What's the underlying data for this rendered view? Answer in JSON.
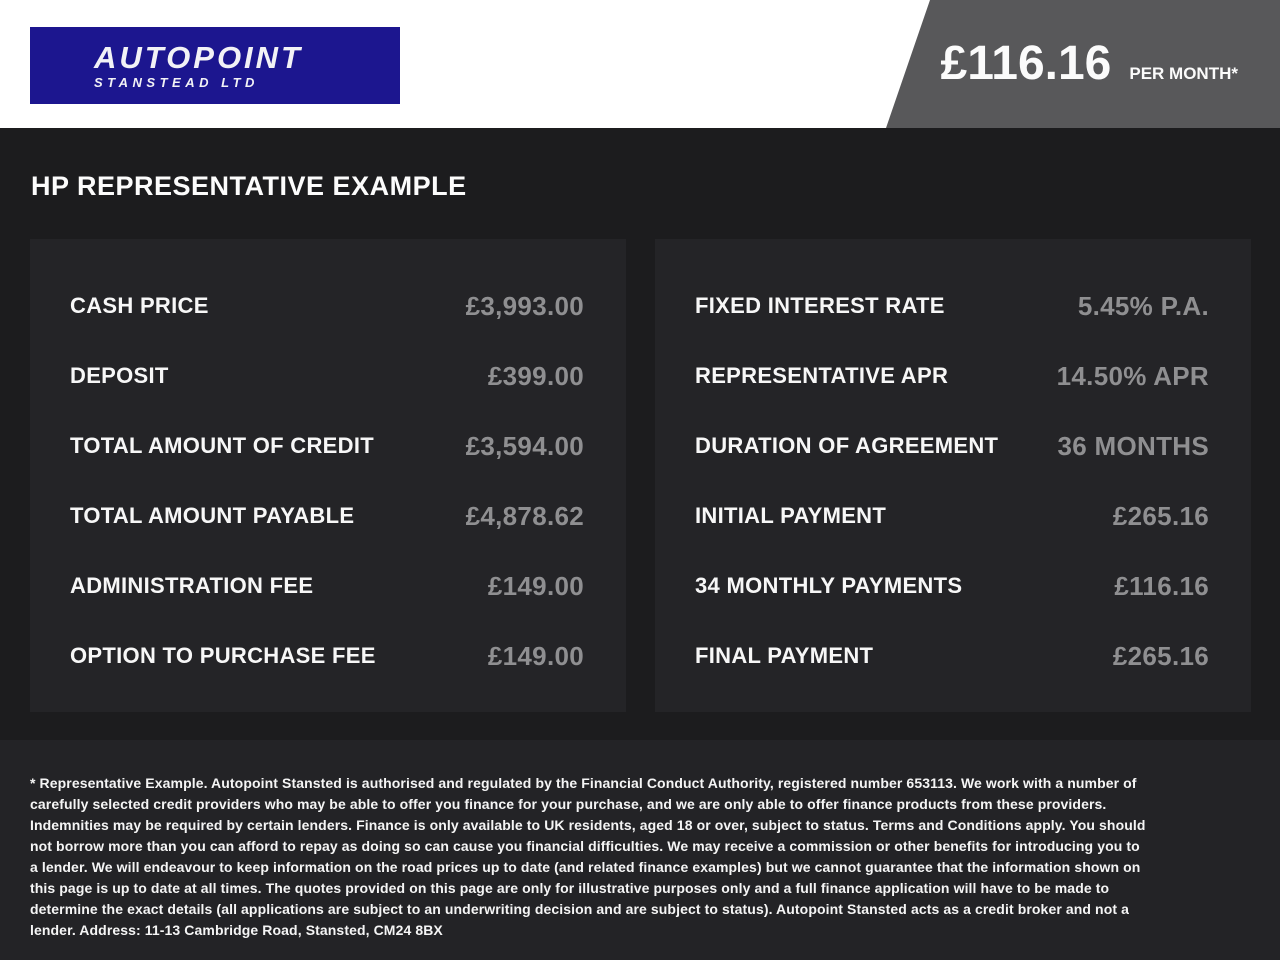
{
  "header": {
    "logo": {
      "brand": "AUTOPOINT",
      "subtitle": "STANSTEAD LTD",
      "background_color": "#1c168f"
    },
    "price_banner": {
      "amount": "£116.16",
      "period": "PER MONTH*",
      "background_color": "#58585a"
    }
  },
  "section_title": "HP REPRESENTATIVE EXAMPLE",
  "finance_table": {
    "left_rows": [
      {
        "label": "CASH PRICE",
        "value": "£3,993.00"
      },
      {
        "label": "DEPOSIT",
        "value": "£399.00"
      },
      {
        "label": "TOTAL AMOUNT OF CREDIT",
        "value": "£3,594.00"
      },
      {
        "label": "TOTAL AMOUNT PAYABLE",
        "value": "£4,878.62"
      },
      {
        "label": "ADMINISTRATION FEE",
        "value": "£149.00"
      },
      {
        "label": "OPTION TO PURCHASE FEE",
        "value": "£149.00"
      }
    ],
    "right_rows": [
      {
        "label": "FIXED INTEREST RATE",
        "value": "5.45% P.A."
      },
      {
        "label": "REPRESENTATIVE APR",
        "value": "14.50% APR"
      },
      {
        "label": "DURATION OF AGREEMENT",
        "value": "36 MONTHS"
      },
      {
        "label": "INITIAL PAYMENT",
        "value": "£265.16"
      },
      {
        "label": "34 MONTHLY PAYMENTS",
        "value": "£116.16"
      },
      {
        "label": "FINAL PAYMENT",
        "value": "£265.16"
      }
    ]
  },
  "footer": {
    "disclaimer": "* Representative Example. Autopoint Stansted is authorised and regulated by the Financial Conduct Authority, registered number 653113. We work with a number of carefully selected credit providers who may be able to offer you finance for your purchase, and we are only able to offer finance products from these providers. Indemnities may be required by certain lenders. Finance is only available to UK residents, aged 18 or over, subject to status. Terms and Conditions apply. You should not borrow more than you can afford to repay as doing so can cause you financial difficulties. We may receive a commission or other benefits for introducing you to a lender. We will endeavour to keep information on the road prices up to date (and related finance examples) but we cannot guarantee that the information shown on this page is up to date at all times. The quotes provided on this page are only for illustrative purposes only and a full finance application will have to be made to determine the exact details (all applications are subject to an underwriting decision and are subject to status). Autopoint Stansted acts as a credit broker and not a lender. Address: 11-13 Cambridge Road, Stansted, CM24 8BX"
  },
  "colors": {
    "page_background": "#1c1c1e",
    "panel_background": "#242427",
    "footer_background": "#232326",
    "topbar_background": "#ffffff",
    "label_text": "#f7f7f7",
    "value_text": "#8f8f91"
  }
}
